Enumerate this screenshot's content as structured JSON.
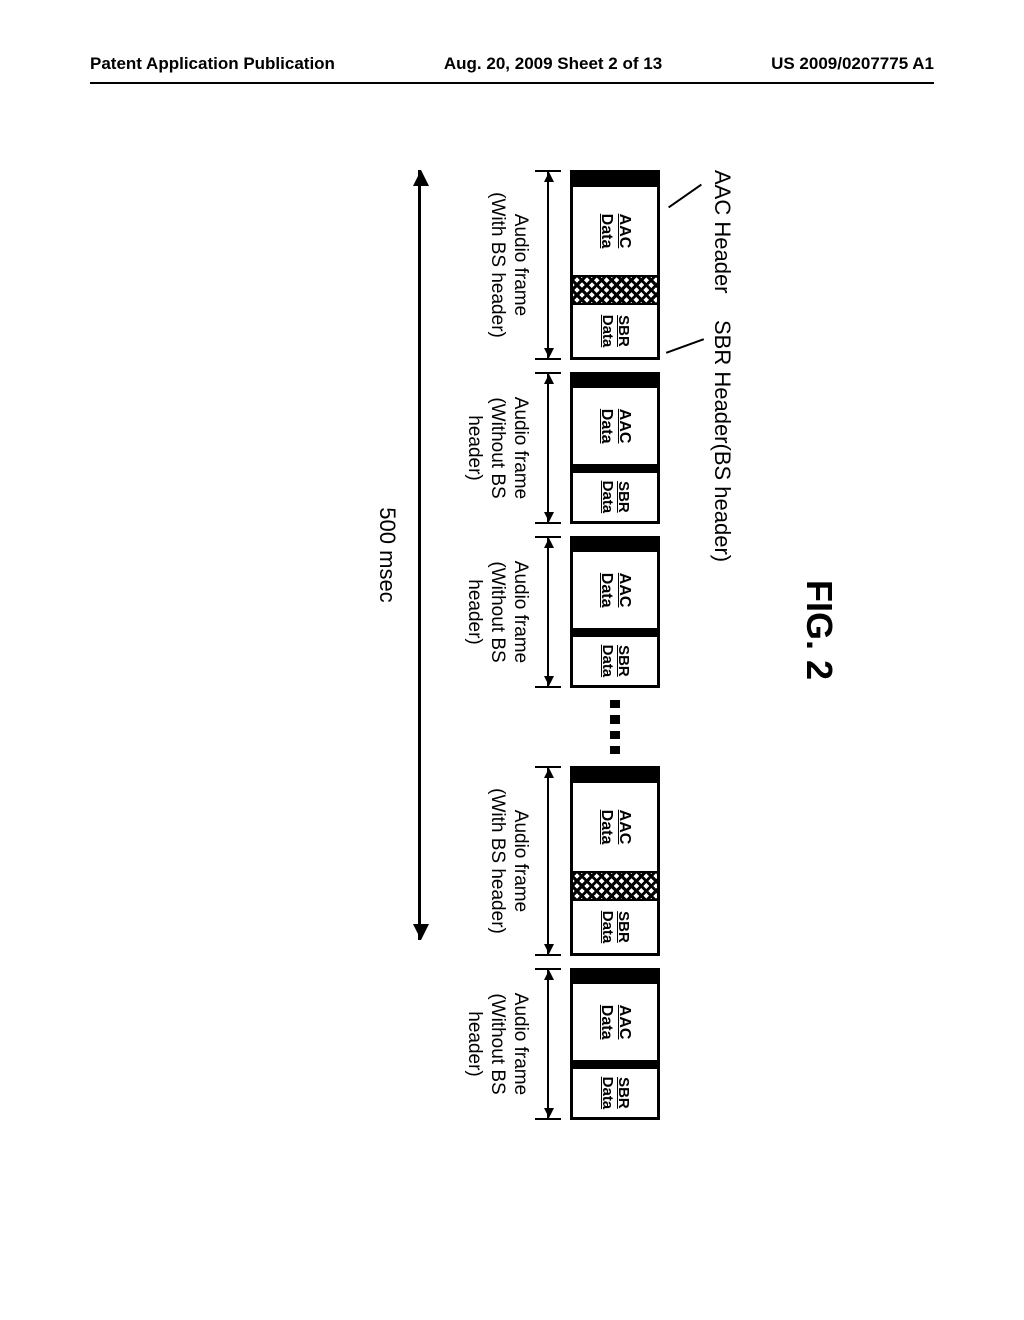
{
  "header": {
    "left": "Patent Application Publication",
    "center": "Aug. 20, 2009  Sheet 2 of 13",
    "right": "US 2009/0207775 A1"
  },
  "figure": {
    "title": "FIG. 2",
    "callouts": {
      "aac_header": "AAC Header",
      "sbr_header": "SBR Header(BS header)"
    },
    "segments": {
      "aac_data": "AAC\nData",
      "sbr_data": "SBR\nData"
    },
    "frame_labels": {
      "with": "Audio frame\n(With BS header)",
      "without": "Audio frame\n(Without BS header)"
    },
    "span_label": "500 msec",
    "frames": [
      {
        "has_bs": true
      },
      {
        "has_bs": false
      },
      {
        "has_bs": false
      },
      {
        "dots": true
      },
      {
        "has_bs": true
      },
      {
        "has_bs": false
      }
    ],
    "frame_widths": {
      "with_bs": 190,
      "without_bs": 152,
      "dots": 54
    },
    "colors": {
      "black": "#000000",
      "white": "#ffffff"
    }
  }
}
